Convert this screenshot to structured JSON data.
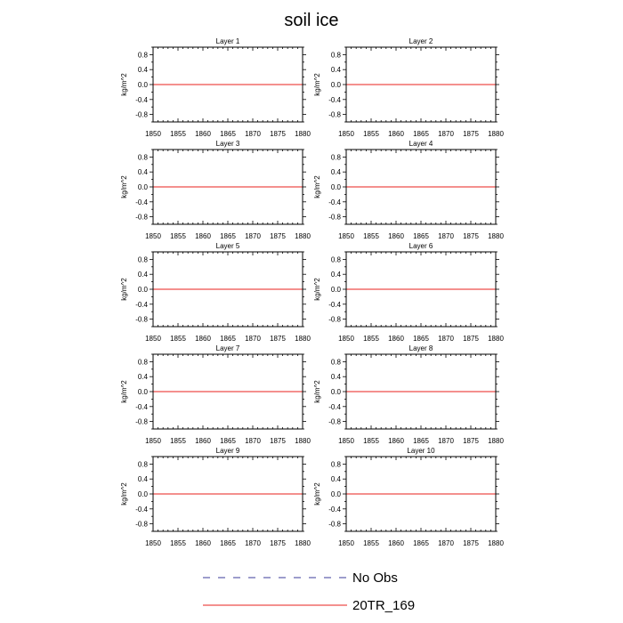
{
  "chart_data": {
    "type": "line",
    "title": "soil ice",
    "ylabel": "kg/m^2",
    "xlim": [
      1850,
      1880
    ],
    "ylim": [
      -1,
      1
    ],
    "x_ticks": [
      1850,
      1855,
      1860,
      1865,
      1870,
      1875,
      1880
    ],
    "y_ticks": [
      0.8,
      0.4,
      0.0,
      -0.4,
      -0.8
    ],
    "y_tick_labels": [
      "0.8",
      "0.4",
      "0.0",
      "-0.4",
      "-0.8"
    ],
    "panels": [
      {
        "title": "Layer 1"
      },
      {
        "title": "Layer 2"
      },
      {
        "title": "Layer 3"
      },
      {
        "title": "Layer 4"
      },
      {
        "title": "Layer 5"
      },
      {
        "title": "Layer 6"
      },
      {
        "title": "Layer 7"
      },
      {
        "title": "Layer 8"
      },
      {
        "title": "Layer 9"
      },
      {
        "title": "Layer 10"
      }
    ],
    "series": [
      {
        "name": "No Obs",
        "color": "#3b3b9a",
        "dash": "dashed",
        "x": [],
        "y": []
      },
      {
        "name": "20TR_169",
        "color": "#e8201c",
        "dash": "solid",
        "x": [
          1850,
          1880
        ],
        "y": [
          0,
          0
        ]
      }
    ],
    "legend_placement": "bottom-center",
    "grid": false
  }
}
